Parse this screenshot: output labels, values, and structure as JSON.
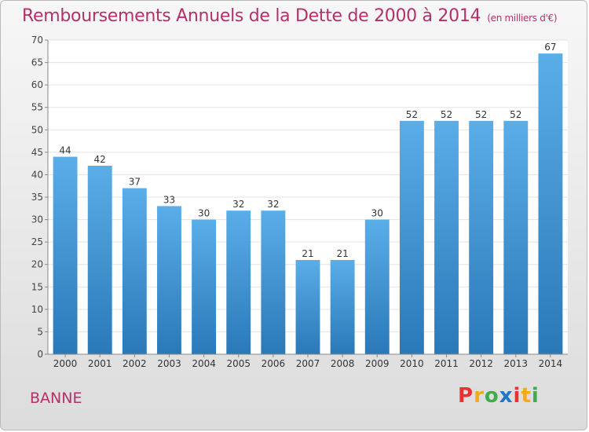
{
  "chart_data": {
    "type": "bar",
    "title": "Remboursements Annuels de la Dette de 2000 à 2014",
    "unit_note": "(en milliers d'€)",
    "categories": [
      "2000",
      "2001",
      "2002",
      "2003",
      "2004",
      "2005",
      "2006",
      "2007",
      "2008",
      "2009",
      "2010",
      "2011",
      "2012",
      "2013",
      "2014"
    ],
    "values": [
      44,
      42,
      37,
      33,
      30,
      32,
      32,
      21,
      21,
      30,
      52,
      52,
      52,
      52,
      67
    ],
    "ylim": [
      0,
      70
    ],
    "yticks": [
      0,
      5,
      10,
      15,
      20,
      25,
      30,
      35,
      40,
      45,
      50,
      55,
      60,
      65,
      70
    ],
    "grid": true,
    "bar_color": "#3a8fd0"
  },
  "place_name": "BANNE",
  "logo_letters": [
    "P",
    "r",
    "o",
    "x",
    "i",
    "t",
    "i"
  ],
  "logo_colors": [
    "#e8322f",
    "#f7a81b",
    "#3fae49",
    "#1e78c8",
    "#e8322f",
    "#f7a81b",
    "#3fae49"
  ]
}
